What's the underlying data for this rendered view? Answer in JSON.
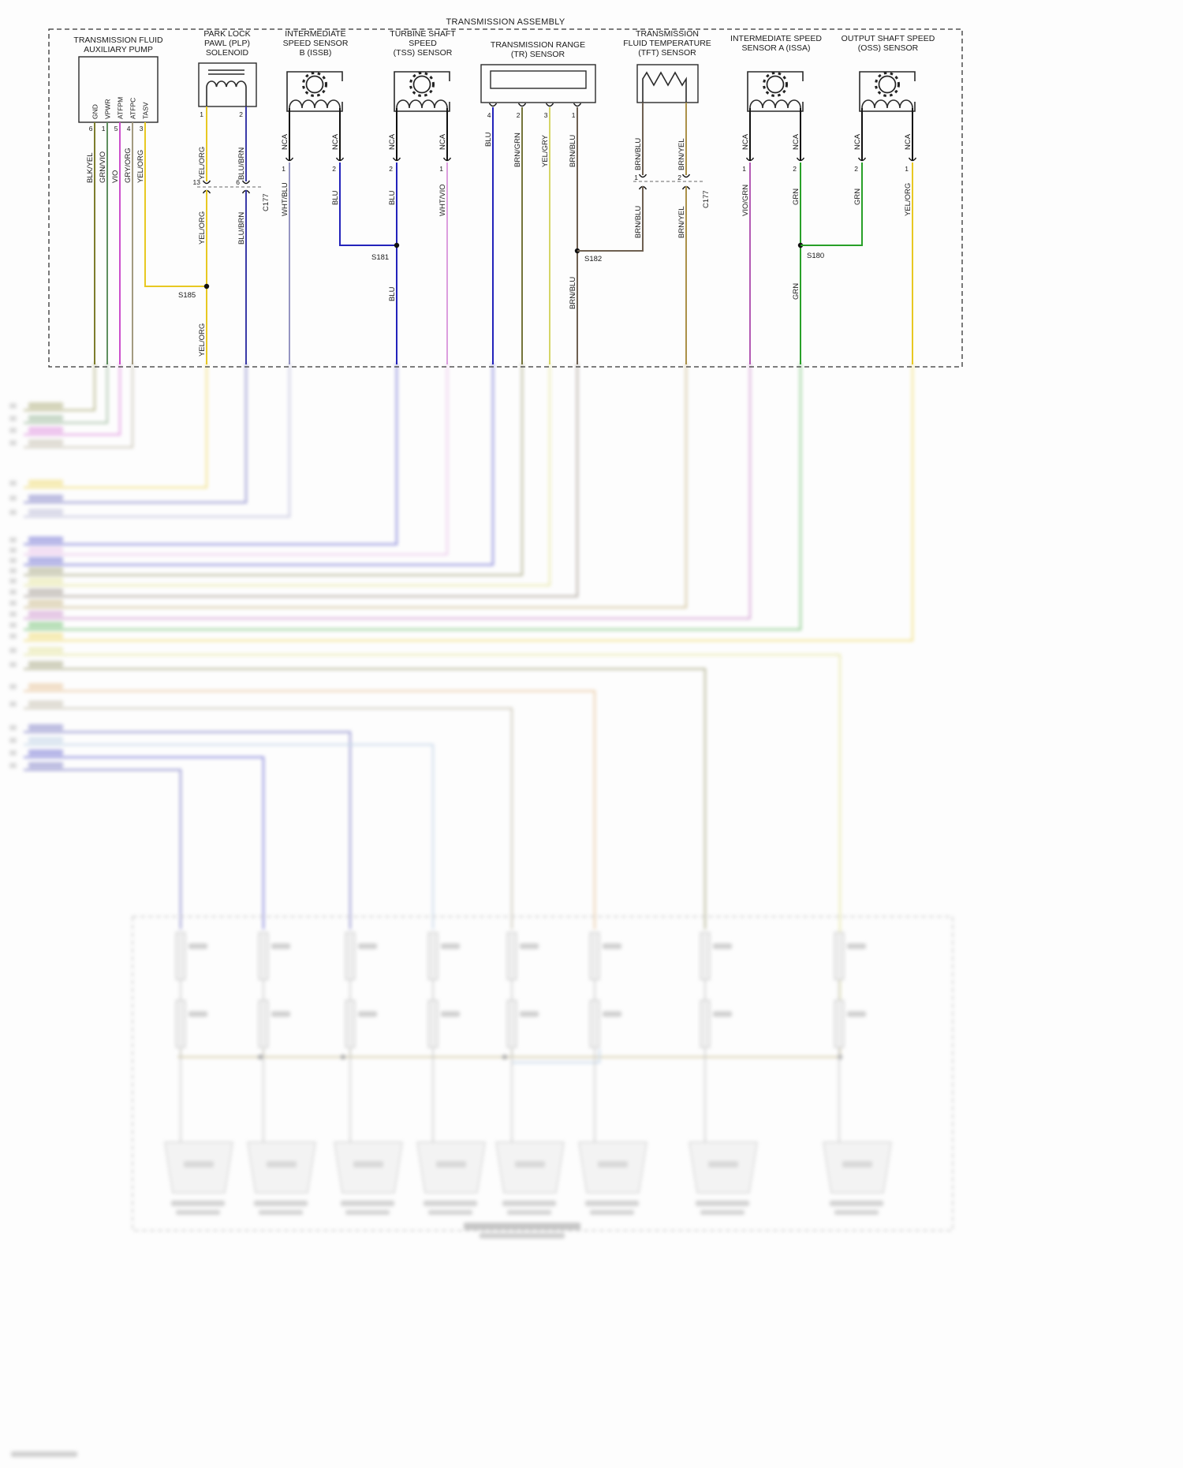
{
  "assembly_title": "TRANSMISSION ASSEMBLY",
  "colors": {
    "blk_yel": "#7d7d2c",
    "grn_vio": "#5f8f5f",
    "vio": "#cc4fcc",
    "gry_org": "#a39a80",
    "yel_org": "#e8c822",
    "blu_brn": "#3a3aa8",
    "wht_blu": "#9595c2",
    "blu": "#2323bb",
    "wht_vio": "#dc9ede",
    "brn_grn": "#74743a",
    "yel_gry": "#d6d668",
    "brn_blu": "#6e6051",
    "brn_yel": "#ab9148",
    "vio_grn": "#b35ab3",
    "grn": "#28a028",
    "org": "#dba15e",
    "lt_blu": "#9ab8d8",
    "bus": "#b0a060",
    "black": "#1a1a1a"
  },
  "pump": {
    "title": [
      "TRANSMISSION FLUID",
      "AUXILIARY PUMP"
    ],
    "pins": [
      "GND",
      "VPWR",
      "ATFPM",
      "ATFPC",
      "TASV"
    ],
    "pin_numbers": [
      "6",
      "1",
      "5",
      "4",
      "3"
    ],
    "wires": [
      "BLK/YEL",
      "GRN/VIO",
      "VIO",
      "GRY/ORG",
      "YEL/ORG"
    ]
  },
  "plp": {
    "title": [
      "PARK LOCK",
      "PAWL (PLP)",
      "SOLENOID"
    ],
    "pin_numbers": [
      "1",
      "2"
    ],
    "wires_upper": [
      "YEL/ORG",
      "BLU/BRN"
    ],
    "connector": "C177",
    "connector_pins": [
      "13",
      "6"
    ],
    "wires_lower": [
      "YEL/ORG",
      "BLU/BRN"
    ],
    "splice": "S185",
    "wire_below_splice": "YEL/ORG"
  },
  "issb": {
    "title": [
      "INTERMEDIATE",
      "SPEED SENSOR",
      "B (ISSB)"
    ],
    "stub_labels": [
      "NCA",
      "NCA"
    ],
    "pin_numbers": [
      "1",
      "2"
    ],
    "wires": [
      "WHT/BLU",
      "BLU"
    ]
  },
  "tss": {
    "title": [
      "TURBINE SHAFT",
      "SPEED",
      "(TSS) SENSOR"
    ],
    "stub_labels": [
      "NCA",
      "NCA"
    ],
    "pin_numbers": [
      "2",
      "1"
    ],
    "wires": [
      "BLU",
      "WHT/VIO"
    ],
    "splice": "S181",
    "wire_below_splice": "BLU"
  },
  "tr": {
    "title": [
      "TRANSMISSION RANGE",
      "(TR) SENSOR"
    ],
    "pin_numbers": [
      "4",
      "2",
      "3",
      "1"
    ],
    "wires": [
      "BLU",
      "BRN/GRN",
      "YEL/GRY",
      "BRN/BLU"
    ],
    "splice": "S182",
    "wire_below_splice": "BRN/BLU"
  },
  "tft": {
    "title": [
      "TRANSMISSION",
      "FLUID TEMPERATURE",
      "(TFT) SENSOR"
    ],
    "wires_upper": [
      "BRN/BLU",
      "BRN/YEL"
    ],
    "connector": "C177",
    "connector_pins": [
      "1",
      "2"
    ],
    "wires_lower": [
      "BRN/BLU",
      "BRN/YEL"
    ]
  },
  "issa": {
    "title": [
      "INTERMEDIATE SPEED",
      "SENSOR A (ISSA)"
    ],
    "stub_labels": [
      "NCA",
      "NCA"
    ],
    "pin_numbers": [
      "1",
      "2"
    ],
    "wires": [
      "VIO/GRN",
      "GRN"
    ],
    "splice": "S180",
    "wire_below_splice": "GRN"
  },
  "oss": {
    "title": [
      "OUTPUT SHAFT SPEED",
      "(OSS) SENSOR"
    ],
    "stub_labels": [
      "NCA",
      "NCA"
    ],
    "pin_numbers": [
      "2",
      "1"
    ],
    "wires": [
      "GRN",
      "YEL/ORG"
    ]
  }
}
